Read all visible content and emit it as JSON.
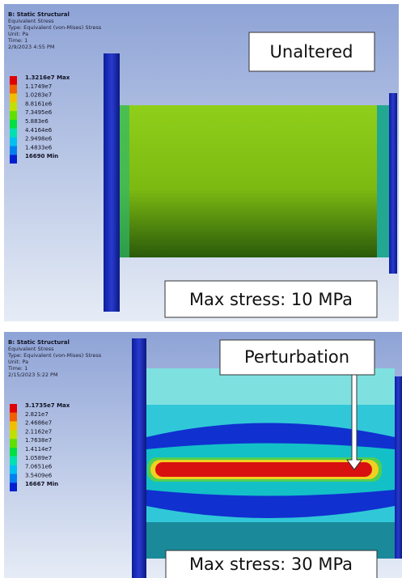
{
  "panels": [
    {
      "title": "B: Static Structural",
      "lines": [
        "Equivalent Stress",
        "Type: Equivalent (von-Mises) Stress",
        "Unit: Pa",
        "Time: 1",
        "2/9/2023 4:55 PM"
      ],
      "legend": [
        "1.3216e7 Max",
        "1.1749e7",
        "1.0283e7",
        "8.8161e6",
        "7.3495e6",
        "5.883e6",
        "4.4164e6",
        "2.9498e6",
        "1.4833e6",
        "16690 Min"
      ],
      "callout": "Unaltered",
      "result": "Max stress: 10 MPa"
    },
    {
      "title": "B: Static Structural",
      "lines": [
        "Equivalent Stress",
        "Type: Equivalent (von-Mises) Stress",
        "Unit: Pa",
        "Time: 1",
        "2/15/2023 5:22 PM"
      ],
      "legend": [
        "3.1735e7 Max",
        "2.821e7",
        "2.4686e7",
        "2.1162e7",
        "1.7638e7",
        "1.4114e7",
        "1.0589e7",
        "7.0651e6",
        "3.5409e6",
        "16667 Min"
      ],
      "callout": "Perturbation",
      "result": "Max stress: 30 MPa"
    }
  ]
}
